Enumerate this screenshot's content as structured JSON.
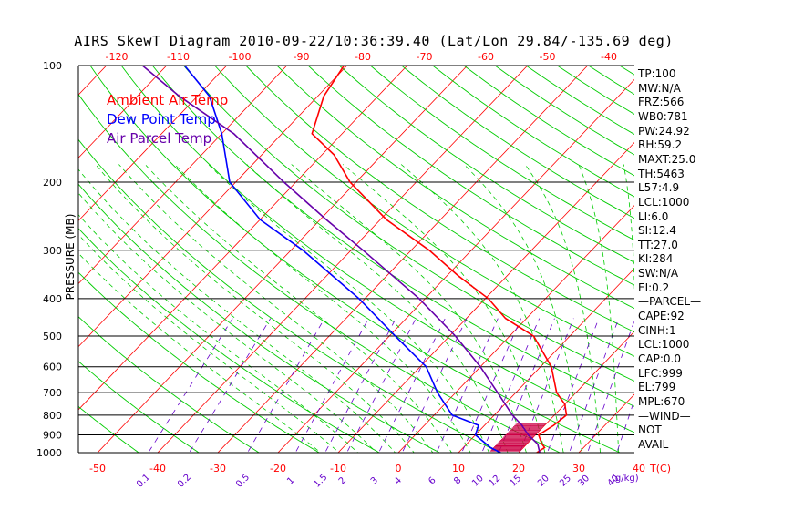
{
  "title": "AIRS SkewT Diagram 2010-09-22/10:36:39.40 (Lat/Lon 29.84/-135.69 deg)",
  "side_panel": [
    "TP:100",
    "MW:N/A",
    "FRZ:566",
    "WB0:781",
    "PW:24.92",
    "RH:59.2",
    "MAXT:25.0",
    "TH:5463",
    "L57:4.9",
    "LCL:1000",
    "LI:6.0",
    "SI:12.4",
    "TT:27.0",
    "KI:284",
    "SW:N/A",
    "EI:0.2",
    "—PARCEL—",
    "CAPE:92",
    "CINH:1",
    "LCL:1000",
    "CAP:0.0",
    "LFC:999",
    "EL:799",
    "MPL:670",
    "—WIND—",
    "NOT",
    "AVAIL"
  ],
  "colors": {
    "ambient": "#ff0000",
    "dewpoint": "#0000ff",
    "parcel": "#6600aa",
    "isotherm": "#ff0000",
    "dry_adiabat": "#00cc00",
    "moist_adiabat": "#00cc00",
    "mixing_ratio": "#6600cc",
    "isobar": "#000000",
    "wind_fill": "#cc0044"
  },
  "chart_data": {
    "type": "line",
    "title": "AIRS SkewT Diagram 2010-09-22/10:36:39.40 (Lat/Lon 29.84/-135.69 deg)",
    "ylabel": "PRESSURE (MB)",
    "xlabel": "T(C)",
    "ylim": [
      1000,
      100
    ],
    "y_scale": "log",
    "pressure_ticks": [
      100,
      200,
      300,
      400,
      500,
      600,
      700,
      800,
      900,
      1000
    ],
    "bottom_temp_ticks": [
      -50,
      -40,
      -30,
      -20,
      -10,
      0,
      10,
      20,
      30,
      40
    ],
    "bottom_temp_unit": "T(C)",
    "top_temp_ticks": [
      -120,
      -110,
      -100,
      -90,
      -80,
      -70,
      -60,
      -50,
      -40
    ],
    "mixing_ratio_ticks": [
      "0.1",
      "0.2",
      "0.5",
      "1",
      "1.5",
      "2",
      "3",
      "4",
      "6",
      "8",
      "10",
      "12",
      "15",
      "20",
      "25",
      "30",
      "40"
    ],
    "mixing_ratio_unit": "(g/kg)",
    "legend": [
      {
        "label": "Ambient Air Temp",
        "color": "#ff0000"
      },
      {
        "label": "Dew Point Temp",
        "color": "#0000ff"
      },
      {
        "label": "Air Parcel Temp",
        "color": "#6600aa"
      }
    ],
    "series": [
      {
        "name": "Ambient Air Temp",
        "points": [
          [
            1000,
            23.0
          ],
          [
            970,
            23.5
          ],
          [
            950,
            22.5
          ],
          [
            900,
            20.5
          ],
          [
            850,
            21.5
          ],
          [
            800,
            22.0
          ],
          [
            750,
            20.0
          ],
          [
            700,
            16.8
          ],
          [
            600,
            11.8
          ],
          [
            500,
            4.0
          ],
          [
            450,
            -3.5
          ],
          [
            400,
            -9.5
          ],
          [
            350,
            -18.0
          ],
          [
            300,
            -27.0
          ],
          [
            250,
            -39.0
          ],
          [
            200,
            -51.0
          ],
          [
            170,
            -58.0
          ],
          [
            150,
            -65.0
          ],
          [
            120,
            -69.0
          ],
          [
            100,
            -70.5
          ]
        ]
      },
      {
        "name": "Dew Point Temp",
        "points": [
          [
            1000,
            17.0
          ],
          [
            970,
            14.5
          ],
          [
            900,
            10.0
          ],
          [
            850,
            9.0
          ],
          [
            800,
            3.0
          ],
          [
            700,
            -3.0
          ],
          [
            600,
            -9.0
          ],
          [
            500,
            -19.0
          ],
          [
            400,
            -31.0
          ],
          [
            300,
            -48.0
          ],
          [
            250,
            -60.0
          ],
          [
            200,
            -71.0
          ],
          [
            150,
            -80.0
          ],
          [
            120,
            -88.0
          ],
          [
            100,
            -97.0
          ]
        ]
      },
      {
        "name": "Air Parcel Temp",
        "points": [
          [
            1000,
            23.5
          ],
          [
            950,
            21.8
          ],
          [
            900,
            18.8
          ],
          [
            850,
            16.2
          ],
          [
            800,
            13.0
          ],
          [
            700,
            7.0
          ],
          [
            600,
            0.0
          ],
          [
            500,
            -9.0
          ],
          [
            400,
            -21.0
          ],
          [
            300,
            -38.0
          ],
          [
            250,
            -49.0
          ],
          [
            200,
            -62.0
          ],
          [
            150,
            -78.0
          ],
          [
            120,
            -93.0
          ],
          [
            100,
            -104.0
          ]
        ]
      }
    ]
  }
}
